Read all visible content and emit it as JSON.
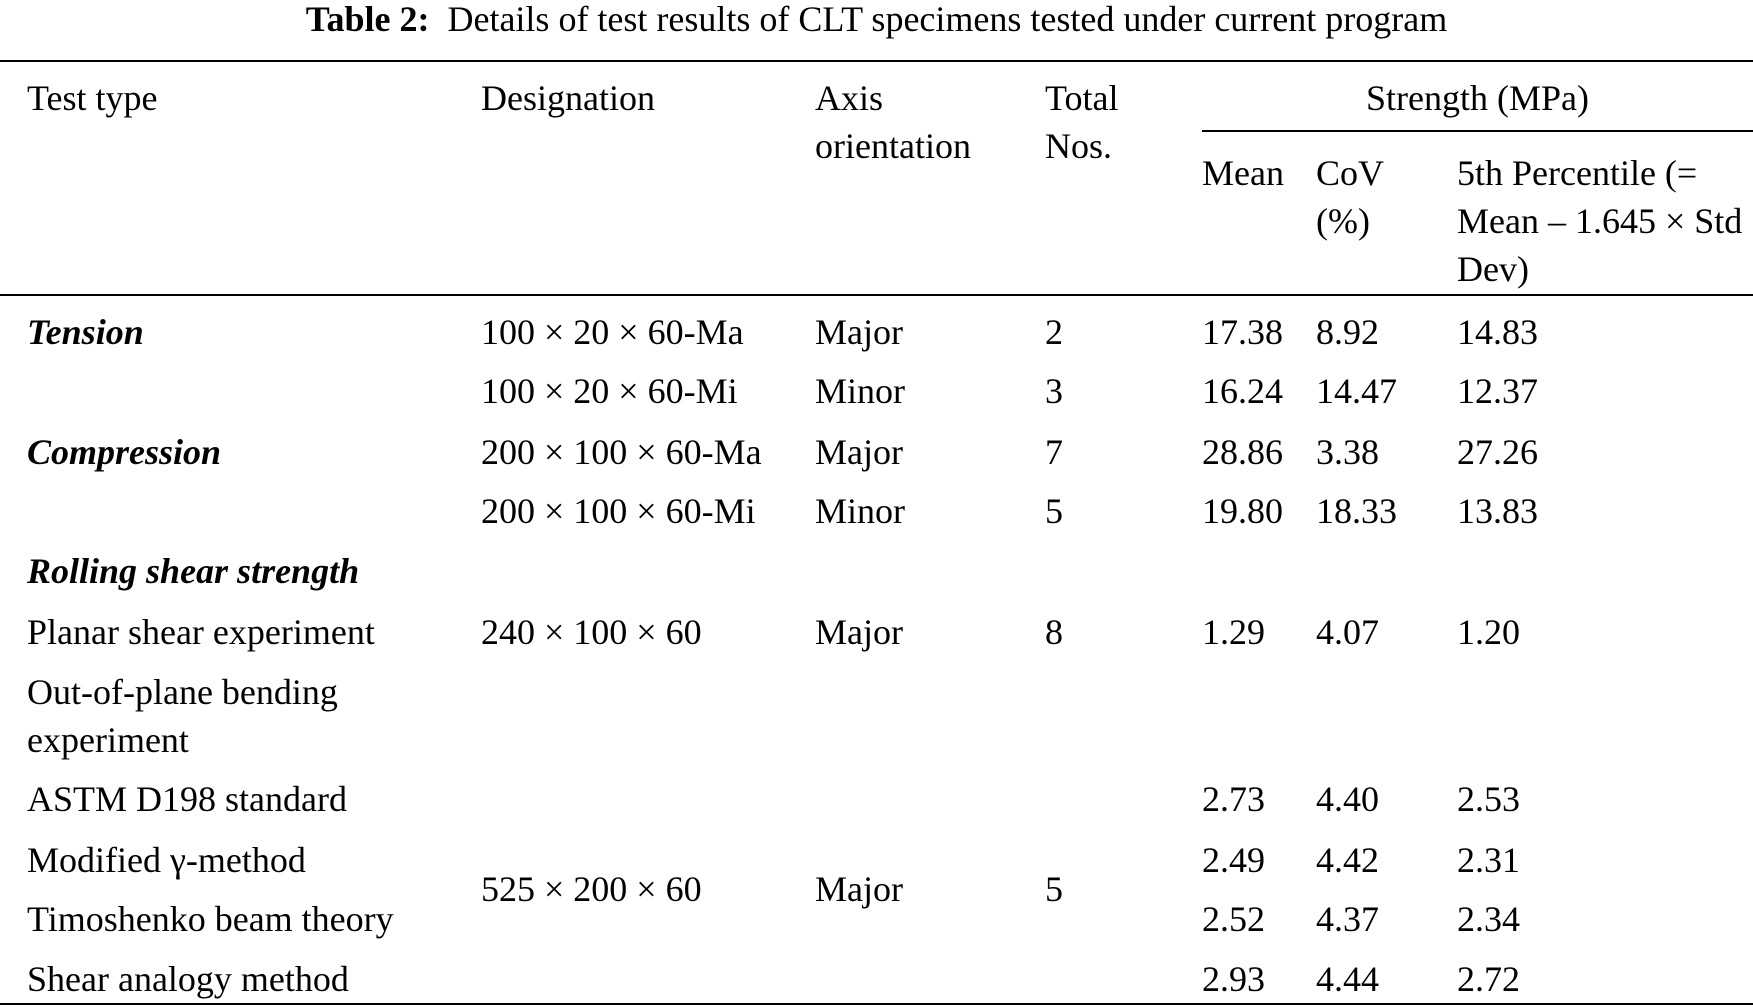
{
  "caption": {
    "label": "Table 2:",
    "text": "Details of test results of CLT specimens tested under current program"
  },
  "table": {
    "headers": {
      "test_type": "Test type",
      "designation": "Designation",
      "axis": "Axis orientation",
      "total": "Total Nos.",
      "strength": "Strength (MPa)",
      "mean": "Mean",
      "cov": "CoV (%)",
      "p5": "5th Percentile (= Mean – 1.645 × Std Dev)"
    },
    "sections": [
      {
        "title": "Tension",
        "rows": [
          {
            "designation": "100 × 20 × 60-Ma",
            "axis": "Major",
            "total": "2",
            "mean": "17.38",
            "cov": "8.92",
            "p5": "14.83"
          },
          {
            "designation": "100 × 20 × 60-Mi",
            "axis": "Minor",
            "total": "3",
            "mean": "16.24",
            "cov": "14.47",
            "p5": "12.37"
          }
        ]
      },
      {
        "title": "Compression",
        "rows": [
          {
            "designation": "200 × 100 × 60-Ma",
            "axis": "Major",
            "total": "7",
            "mean": "28.86",
            "cov": "3.38",
            "p5": "27.26"
          },
          {
            "designation": "200 × 100 × 60-Mi",
            "axis": "Minor",
            "total": "5",
            "mean": "19.80",
            "cov": "18.33",
            "p5": "13.83"
          }
        ]
      },
      {
        "title": "Rolling shear strength",
        "rows": [
          {
            "test_type": "Planar shear experiment",
            "designation": "240 × 100 × 60",
            "axis": "Major",
            "total": "8",
            "mean": "1.29",
            "cov": "4.07",
            "p5": "1.20"
          },
          {
            "test_type": "Out-of-plane bending experiment"
          },
          {
            "test_type": "ASTM D198 standard",
            "mean": "2.73",
            "cov": "4.40",
            "p5": "2.53"
          },
          {
            "test_type": "Modified γ-method",
            "mean": "2.49",
            "cov": "4.42",
            "p5": "2.31"
          },
          {
            "test_type": "Timoshenko beam theory",
            "mean": "2.52",
            "cov": "4.37",
            "p5": "2.34"
          },
          {
            "test_type": "Shear analogy method",
            "mean": "2.93",
            "cov": "4.44",
            "p5": "2.72"
          }
        ]
      }
    ],
    "group": {
      "designation": "525 × 200 × 60",
      "axis": "Major",
      "total": "5"
    }
  }
}
